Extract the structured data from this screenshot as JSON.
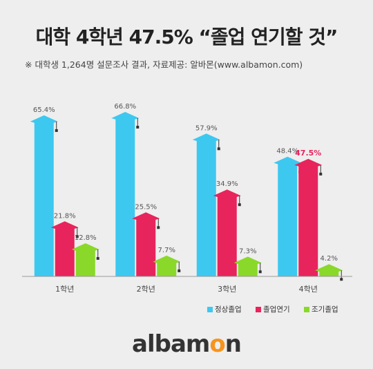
{
  "header": {
    "title": "대학 4학년 47.5% “졸업 연기할 것”",
    "subtitle": "※ 대학생 1,264명 설문조사 결과, 자료제공: 알바몬(www.albamon.com)"
  },
  "logo": {
    "part1": "albam",
    "part2": "o",
    "part3": "n"
  },
  "colors": {
    "series": [
      "#3dc8f0",
      "#e8245c",
      "#8ad82a"
    ],
    "highlight_label": "#e8245c",
    "label": "#555555"
  },
  "chart_data": {
    "type": "bar",
    "categories": [
      "1학년",
      "2학년",
      "3학년",
      "4학년"
    ],
    "series": [
      {
        "name": "정상졸업",
        "values": [
          65.4,
          66.8,
          57.9,
          48.4
        ],
        "labels": [
          "65.4%",
          "66.8%",
          "57.9%",
          "48.4%"
        ]
      },
      {
        "name": "졸업연기",
        "values": [
          21.8,
          25.5,
          34.9,
          47.5
        ],
        "labels": [
          "21.8%",
          "25.5%",
          "34.9%",
          "47.5%"
        ]
      },
      {
        "name": "조기졸업",
        "values": [
          12.8,
          7.7,
          7.3,
          4.2
        ],
        "labels": [
          "12.8%",
          "7.7%",
          "7.3%",
          "4.2%"
        ]
      }
    ],
    "highlight": {
      "series": 1,
      "category": 3
    },
    "ylim": [
      0,
      70
    ],
    "legend": "bottom-right",
    "grid": false
  }
}
